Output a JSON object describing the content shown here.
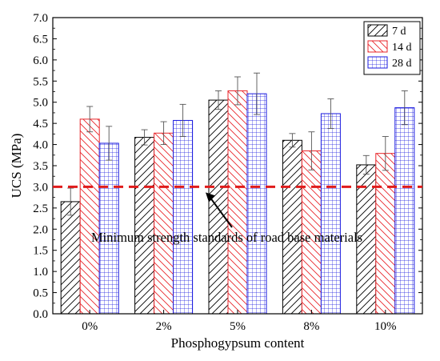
{
  "chart_data": {
    "type": "bar",
    "categories": [
      "0%",
      "2%",
      "5%",
      "8%",
      "10%"
    ],
    "series": [
      {
        "name": "7 d",
        "values": [
          2.65,
          4.17,
          5.05,
          4.1,
          3.52
        ],
        "errors": [
          0.32,
          0.18,
          0.22,
          0.16,
          0.22
        ],
        "color": "#000000",
        "hatch": "diag-right"
      },
      {
        "name": "14 d",
        "values": [
          4.6,
          4.27,
          5.27,
          3.85,
          3.79
        ],
        "errors": [
          0.3,
          0.27,
          0.33,
          0.45,
          0.4
        ],
        "color": "#e8262b",
        "hatch": "diag-left"
      },
      {
        "name": "28 d",
        "values": [
          4.03,
          4.57,
          5.2,
          4.73,
          4.87
        ],
        "errors": [
          0.4,
          0.38,
          0.49,
          0.35,
          0.4
        ],
        "color": "#1a1adf",
        "hatch": "grid"
      }
    ],
    "xlabel": "Phosphogypsum content",
    "ylabel": "UCS (MPa)",
    "ylim": [
      0.0,
      7.0
    ],
    "yticks": [
      "0.0",
      "0.5",
      "1.0",
      "1.5",
      "2.0",
      "2.5",
      "3.0",
      "3.5",
      "4.0",
      "4.5",
      "5.0",
      "5.5",
      "6.0",
      "6.5",
      "7.0"
    ],
    "reference_line": {
      "value": 3.0,
      "color": "#e01b1b",
      "style": "dashed"
    },
    "annotation": {
      "text": "Minimum strength standards of road base materials",
      "points_to_value": 3.0
    },
    "legend_position": "top-right",
    "grid": false
  }
}
